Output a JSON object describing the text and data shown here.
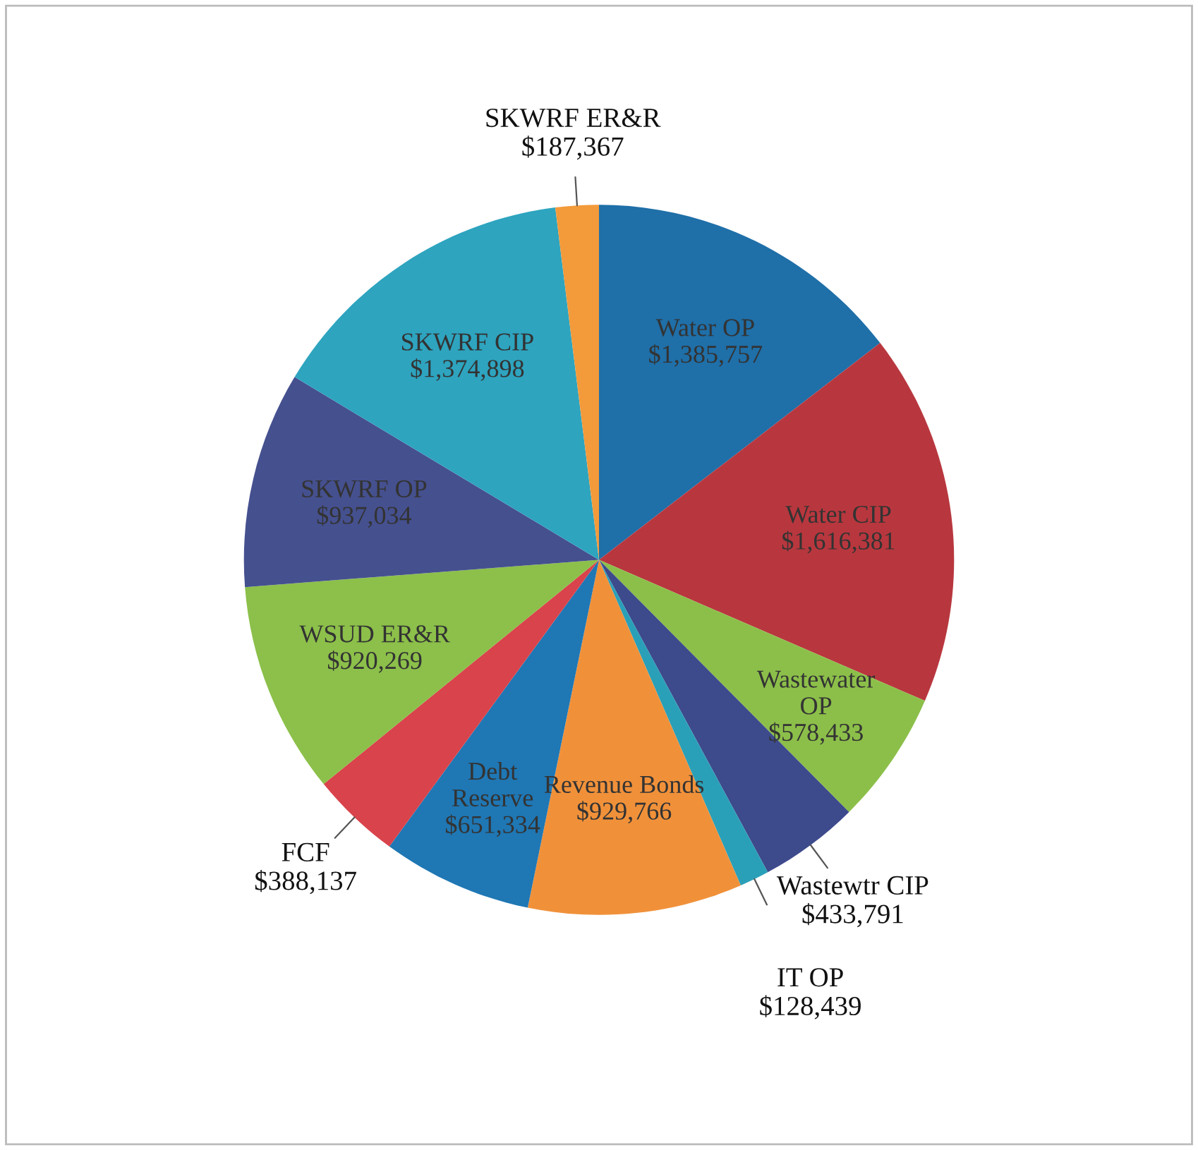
{
  "chart_data": {
    "type": "pie",
    "categories": [
      "Water OP",
      "Water CIP",
      "Wastewater OP",
      "Wastewtr CIP",
      "IT OP",
      "Revenue Bonds",
      "Debt Reserve",
      "FCF",
      "WSUD ER&R",
      "SKWRF OP",
      "SKWRF CIP",
      "SKWRF ER&R"
    ],
    "values": [
      1385757,
      1616381,
      578433,
      433791,
      128439,
      929766,
      651334,
      388137,
      920269,
      937034,
      1374898,
      187367
    ],
    "value_labels": [
      "$1,385,757",
      "$1,616,381",
      "$578,433",
      "$433,791",
      "$128,439",
      "$929,766",
      "$651,334",
      "$388,137",
      "$920,269",
      "$937,034",
      "$1,374,898",
      "$187,367"
    ],
    "colors": [
      "#1f6fa8",
      "#b8373e",
      "#8cbf4a",
      "#3d4a8c",
      "#2aa0b8",
      "#f0913a",
      "#1f77b4",
      "#d9434b",
      "#8cc04a",
      "#45508f",
      "#2ea4bf",
      "#f39a3a"
    ],
    "legend": false
  }
}
